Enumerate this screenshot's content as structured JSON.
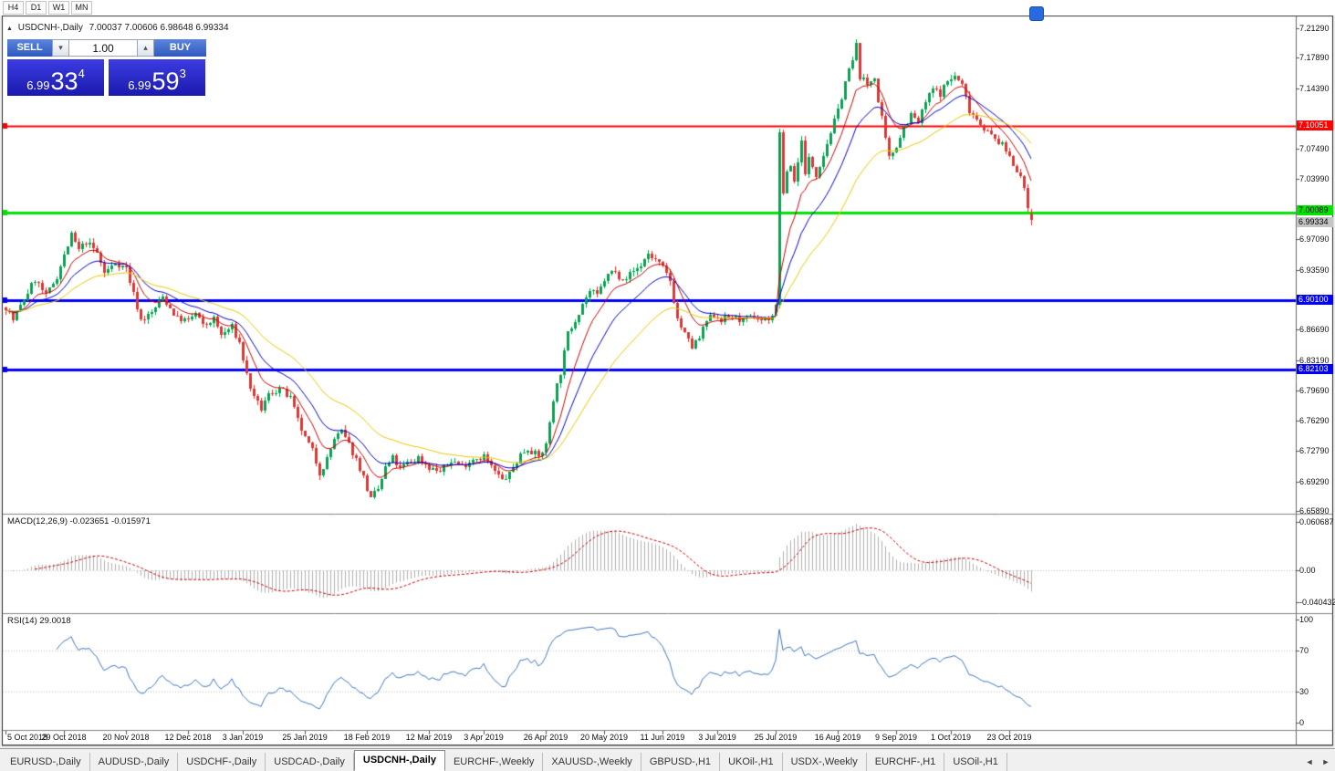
{
  "toolbar": {
    "timeframes": [
      "H4",
      "D1",
      "W1",
      "MN"
    ]
  },
  "icons": {
    "collapse": "▲",
    "spinner_down": "▾",
    "spinner_up": "▴",
    "scroll_left": "◄",
    "scroll_right": "►"
  },
  "window": {
    "symbol_title": "USDCNH-,Daily",
    "ohlc_text": "7.00037 7.00606 6.98648 6.99334"
  },
  "trade": {
    "sell_label": "SELL",
    "buy_label": "BUY",
    "volume": "1.00",
    "sell_price": {
      "prefix": "6.99",
      "big": "33",
      "sup": "4"
    },
    "buy_price": {
      "prefix": "6.99",
      "big": "59",
      "sup": "3"
    }
  },
  "indicators": {
    "macd_text": "MACD(12,26,9) -0.023651 -0.015971",
    "rsi_text": "RSI(14) 29.0018"
  },
  "price_scale": {
    "level_labels": [
      {
        "name": "resistance-price-label",
        "text": "7.10051",
        "price": 7.10051,
        "bg": "#FF0000",
        "fg": "#FFFFFF"
      },
      {
        "name": "support-price-label",
        "text": "7.00089",
        "price": 7.00089,
        "bg": "#00E400",
        "fg": "#000000"
      },
      {
        "name": "current-price-label",
        "text": "6.99334",
        "price": 6.99334,
        "bg": "#C4C4C4",
        "fg": "#000000"
      },
      {
        "name": "level-price-label-1",
        "text": "6.90100",
        "price": 6.901,
        "bg": "#0000FF",
        "fg": "#FFFFFF"
      },
      {
        "name": "level-price-label-2",
        "text": "6.82103",
        "price": 6.82103,
        "bg": "#0000FF",
        "fg": "#FFFFFF"
      }
    ]
  },
  "tabs": {
    "items": [
      {
        "label": "EURUSD-,Daily",
        "active": false
      },
      {
        "label": "AUDUSD-,Daily",
        "active": false
      },
      {
        "label": "USDCHF-,Daily",
        "active": false
      },
      {
        "label": "USDCAD-,Daily",
        "active": false
      },
      {
        "label": "USDCNH-,Daily",
        "active": true
      },
      {
        "label": "EURCHF-,Weekly",
        "active": false
      },
      {
        "label": "XAUUSD-,Weekly",
        "active": false
      },
      {
        "label": "GBPUSD-,H1",
        "active": false
      },
      {
        "label": "UKOil-,H1",
        "active": false
      },
      {
        "label": "USDX-,Weekly",
        "active": false
      },
      {
        "label": "EURCHF-,H1",
        "active": false
      },
      {
        "label": "USOil-,H1",
        "active": false
      }
    ]
  },
  "colors": {
    "up": "#00A651",
    "down": "#E3342F",
    "ma_fast": "#CC0000",
    "ma_mid": "#0000CC",
    "ma_slow": "#E8C800",
    "macd_hist": "#AFAFAF",
    "macd_signal": "#CC0000",
    "rsi": "#4076BF",
    "grid_dotted": "#BEBEBE",
    "separator": "#828282",
    "border": "#555555"
  },
  "chart_data": {
    "type": "candlestick",
    "symbol": "USDCNH-",
    "timeframe": "Daily",
    "current_ohlc": {
      "open": 7.00037,
      "high": 7.00606,
      "low": 6.98648,
      "close": 6.99334
    },
    "price_axis": {
      "min": 6.6589,
      "max": 7.2129,
      "step": 0.035,
      "ticks": [
        {
          "value": 7.2129,
          "text": "7.21290"
        },
        {
          "value": 7.1789,
          "text": "7.17890"
        },
        {
          "value": 7.1439,
          "text": "7.14390"
        },
        {
          "value": 7.0749,
          "text": "7.07490"
        },
        {
          "value": 7.0399,
          "text": "7.03990"
        },
        {
          "value": 6.9709,
          "text": "6.97090"
        },
        {
          "value": 6.9359,
          "text": "6.93590"
        },
        {
          "value": 6.8669,
          "text": "6.86690"
        },
        {
          "value": 6.8319,
          "text": "6.83190"
        },
        {
          "value": 6.7969,
          "text": "6.79690"
        },
        {
          "value": 6.7629,
          "text": "6.76290"
        },
        {
          "value": 6.7279,
          "text": "6.72790"
        },
        {
          "value": 6.6929,
          "text": "6.69290"
        },
        {
          "value": 6.6589,
          "text": "6.65890"
        }
      ]
    },
    "horizontal_levels": [
      {
        "price": 7.10051,
        "color": "#FF0000",
        "width": 2
      },
      {
        "price": 7.00089,
        "color": "#00E400",
        "width": 3
      },
      {
        "price": 6.901,
        "color": "#0000FF",
        "width": 3
      },
      {
        "price": 6.82103,
        "color": "#0000FF",
        "width": 3
      }
    ],
    "moving_averages": [
      {
        "name": "fast",
        "period": 9,
        "color": "#CC0000"
      },
      {
        "name": "medium",
        "period": 18,
        "color": "#0000CC"
      },
      {
        "name": "slow",
        "period": 36,
        "color": "#E8C800"
      }
    ],
    "time_axis": {
      "labels": [
        "5 Oct 2018",
        "29 Oct 2018",
        "20 Nov 2018",
        "12 Dec 2018",
        "3 Jan 2019",
        "25 Jan 2019",
        "18 Feb 2019",
        "12 Mar 2019",
        "3 Apr 2019",
        "26 Apr 2019",
        "20 May 2019",
        "11 Jun 2019",
        "3 Jul 2019",
        "25 Jul 2019",
        "16 Aug 2019",
        "9 Sep 2019",
        "1 Oct 2019",
        "23 Oct 2019"
      ],
      "candle_indices": [
        0,
        16,
        33,
        50,
        65,
        82,
        99,
        116,
        131,
        148,
        164,
        180,
        195,
        211,
        228,
        244,
        259,
        275
      ]
    },
    "candle_count": 282,
    "price_anchors": [
      [
        0,
        6.893
      ],
      [
        2,
        6.878
      ],
      [
        5,
        6.902
      ],
      [
        8,
        6.925
      ],
      [
        11,
        6.905
      ],
      [
        14,
        6.928
      ],
      [
        16,
        6.952
      ],
      [
        18,
        6.975
      ],
      [
        20,
        6.958
      ],
      [
        22,
        6.968
      ],
      [
        25,
        6.955
      ],
      [
        27,
        6.932
      ],
      [
        30,
        6.944
      ],
      [
        33,
        6.938
      ],
      [
        35,
        6.908
      ],
      [
        37,
        6.878
      ],
      [
        40,
        6.886
      ],
      [
        43,
        6.905
      ],
      [
        45,
        6.892
      ],
      [
        47,
        6.88
      ],
      [
        50,
        6.877
      ],
      [
        52,
        6.886
      ],
      [
        54,
        6.871
      ],
      [
        57,
        6.879
      ],
      [
        59,
        6.861
      ],
      [
        62,
        6.87
      ],
      [
        64,
        6.852
      ],
      [
        66,
        6.815
      ],
      [
        68,
        6.788
      ],
      [
        70,
        6.776
      ],
      [
        72,
        6.792
      ],
      [
        75,
        6.8
      ],
      [
        78,
        6.788
      ],
      [
        80,
        6.762
      ],
      [
        82,
        6.742
      ],
      [
        84,
        6.728
      ],
      [
        86,
        6.703
      ],
      [
        88,
        6.718
      ],
      [
        90,
        6.742
      ],
      [
        92,
        6.75
      ],
      [
        94,
        6.735
      ],
      [
        96,
        6.718
      ],
      [
        98,
        6.698
      ],
      [
        100,
        6.672
      ],
      [
        102,
        6.684
      ],
      [
        104,
        6.708
      ],
      [
        106,
        6.72
      ],
      [
        108,
        6.707
      ],
      [
        110,
        6.714
      ],
      [
        113,
        6.72
      ],
      [
        116,
        6.709
      ],
      [
        119,
        6.704
      ],
      [
        122,
        6.717
      ],
      [
        125,
        6.711
      ],
      [
        128,
        6.719
      ],
      [
        131,
        6.722
      ],
      [
        133,
        6.709
      ],
      [
        136,
        6.694
      ],
      [
        138,
        6.701
      ],
      [
        141,
        6.724
      ],
      [
        143,
        6.731
      ],
      [
        146,
        6.721
      ],
      [
        148,
        6.734
      ],
      [
        150,
        6.788
      ],
      [
        152,
        6.818
      ],
      [
        154,
        6.862
      ],
      [
        156,
        6.879
      ],
      [
        158,
        6.897
      ],
      [
        160,
        6.911
      ],
      [
        162,
        6.906
      ],
      [
        164,
        6.924
      ],
      [
        166,
        6.934
      ],
      [
        168,
        6.929
      ],
      [
        170,
        6.927
      ],
      [
        172,
        6.934
      ],
      [
        174,
        6.941
      ],
      [
        176,
        6.954
      ],
      [
        178,
        6.947
      ],
      [
        180,
        6.937
      ],
      [
        182,
        6.923
      ],
      [
        184,
        6.879
      ],
      [
        186,
        6.861
      ],
      [
        188,
        6.847
      ],
      [
        190,
        6.857
      ],
      [
        192,
        6.877
      ],
      [
        194,
        6.884
      ],
      [
        196,
        6.879
      ],
      [
        199,
        6.882
      ],
      [
        202,
        6.877
      ],
      [
        205,
        6.882
      ],
      [
        208,
        6.877
      ],
      [
        210,
        6.884
      ],
      [
        211,
        6.893
      ],
      [
        212,
        7.095
      ],
      [
        213,
        7.02
      ],
      [
        214,
        7.05
      ],
      [
        215,
        7.055
      ],
      [
        216,
        7.038
      ],
      [
        217,
        7.058
      ],
      [
        218,
        7.088
      ],
      [
        219,
        7.044
      ],
      [
        220,
        7.063
      ],
      [
        222,
        7.046
      ],
      [
        224,
        7.068
      ],
      [
        226,
        7.094
      ],
      [
        228,
        7.118
      ],
      [
        230,
        7.152
      ],
      [
        232,
        7.176
      ],
      [
        233,
        7.193
      ],
      [
        234,
        7.158
      ],
      [
        236,
        7.148
      ],
      [
        238,
        7.158
      ],
      [
        239,
        7.128
      ],
      [
        240,
        7.108
      ],
      [
        241,
        7.084
      ],
      [
        242,
        7.063
      ],
      [
        244,
        7.079
      ],
      [
        246,
        7.099
      ],
      [
        248,
        7.114
      ],
      [
        250,
        7.104
      ],
      [
        252,
        7.128
      ],
      [
        254,
        7.143
      ],
      [
        256,
        7.138
      ],
      [
        258,
        7.152
      ],
      [
        260,
        7.158
      ],
      [
        262,
        7.148
      ],
      [
        264,
        7.119
      ],
      [
        266,
        7.109
      ],
      [
        268,
        7.099
      ],
      [
        270,
        7.089
      ],
      [
        272,
        7.083
      ],
      [
        274,
        7.073
      ],
      [
        276,
        7.058
      ],
      [
        278,
        7.043
      ],
      [
        280,
        7.008
      ],
      [
        281,
        6.9933
      ]
    ],
    "indicators": {
      "macd": {
        "params": [
          12,
          26,
          9
        ],
        "current": [
          -0.023651,
          -0.015971
        ],
        "scale_labels": [
          "0.060687",
          "0.00",
          "-0.040432"
        ]
      },
      "rsi": {
        "period": 14,
        "current": 29.0018,
        "scale_labels": [
          "100",
          "70",
          "30",
          "0"
        ]
      }
    }
  }
}
